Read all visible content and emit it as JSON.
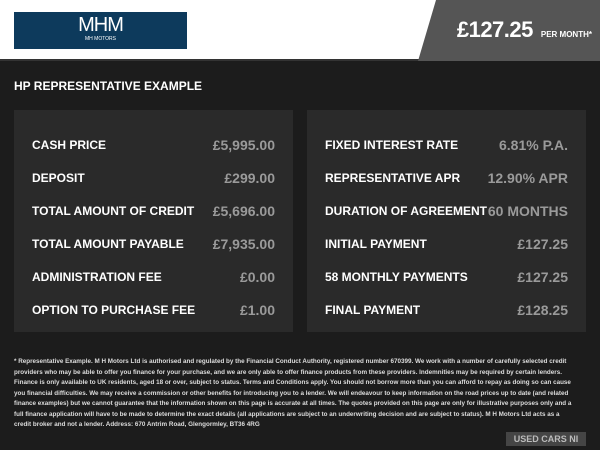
{
  "header": {
    "logo_text": "MHM",
    "logo_sub": "MH MOTORS",
    "price": "£127.25",
    "per_month": "PER MONTH*"
  },
  "title": "HP REPRESENTATIVE EXAMPLE",
  "left": [
    {
      "label": "CASH PRICE",
      "value": "£5,995.00"
    },
    {
      "label": "DEPOSIT",
      "value": "£299.00"
    },
    {
      "label": "TOTAL AMOUNT OF CREDIT",
      "value": "£5,696.00"
    },
    {
      "label": "TOTAL AMOUNT PAYABLE",
      "value": "£7,935.00"
    },
    {
      "label": "ADMINISTRATION FEE",
      "value": "£0.00"
    },
    {
      "label": "OPTION TO PURCHASE FEE",
      "value": "£1.00"
    }
  ],
  "right": [
    {
      "label": "FIXED INTEREST RATE",
      "value": "6.81% P.A."
    },
    {
      "label": "REPRESENTATIVE APR",
      "value": "12.90% APR"
    },
    {
      "label": "DURATION OF AGREEMENT",
      "value": "60 MONTHS"
    },
    {
      "label": "INITIAL PAYMENT",
      "value": "£127.25"
    },
    {
      "label": "58 MONTHLY PAYMENTS",
      "value": "£127.25"
    },
    {
      "label": "FINAL PAYMENT",
      "value": "£128.25"
    }
  ],
  "disclaimer": "* Representative Example. M H Motors Ltd is authorised and regulated by the Financial Conduct Authority, registered number 670399. We work with a number of carefully selected credit providers who may be able to offer you finance for your purchase, and we are only able to offer finance products from these providers. Indemnities may be required by certain lenders. Finance is only available to UK residents, aged 18 or over, subject to status. Terms and Conditions apply. You should not borrow more than you can afford to repay as doing so can cause you financial difficulties. We may receive a commission or other benefits for introducing you to a lender. We will endeavour to keep information on the road prices up to date (and related finance examples) but we cannot guarantee that the information shown on this page is accurate at all times. The quotes provided on this page are only for illustrative purposes only and a full finance application will have to be made to determine the exact details (all applications are subject to an underwriting decision and are subject to status). M H Motors Ltd acts as a credit broker and not a lender. Address: 670 Antrim Road, Glengormley, BT36 4RG",
  "watermark": "USED CARS NI"
}
